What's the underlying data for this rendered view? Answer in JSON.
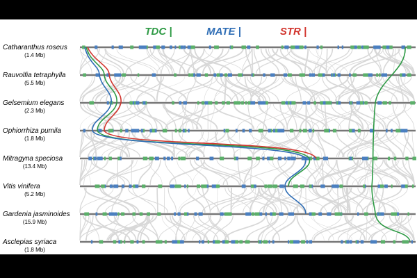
{
  "header": {
    "labels": [
      "TDC |",
      "MATE |",
      "STR |"
    ]
  },
  "genomes": [
    {
      "name": "Catharanthus roseus",
      "size": "(1.4 Mb)"
    },
    {
      "name": "Rauvolfia tetraphylla",
      "size": "(5.5 Mb)"
    },
    {
      "name": "Gelsemium elegans",
      "size": "(2.3 Mb)"
    },
    {
      "name": "Ophiorrhiza pumila",
      "size": "(1.8 Mb)"
    },
    {
      "name": "Mitragyna speciosa",
      "size": "(13.4 Mb)"
    },
    {
      "name": "Vitis vinifera",
      "size": "(5.2 Mb)"
    },
    {
      "name": "Gardenia jasminoides",
      "size": "(15.9 Mb)"
    },
    {
      "name": "Asclepias syriaca",
      "size": "(1.8 Mb)"
    }
  ]
}
